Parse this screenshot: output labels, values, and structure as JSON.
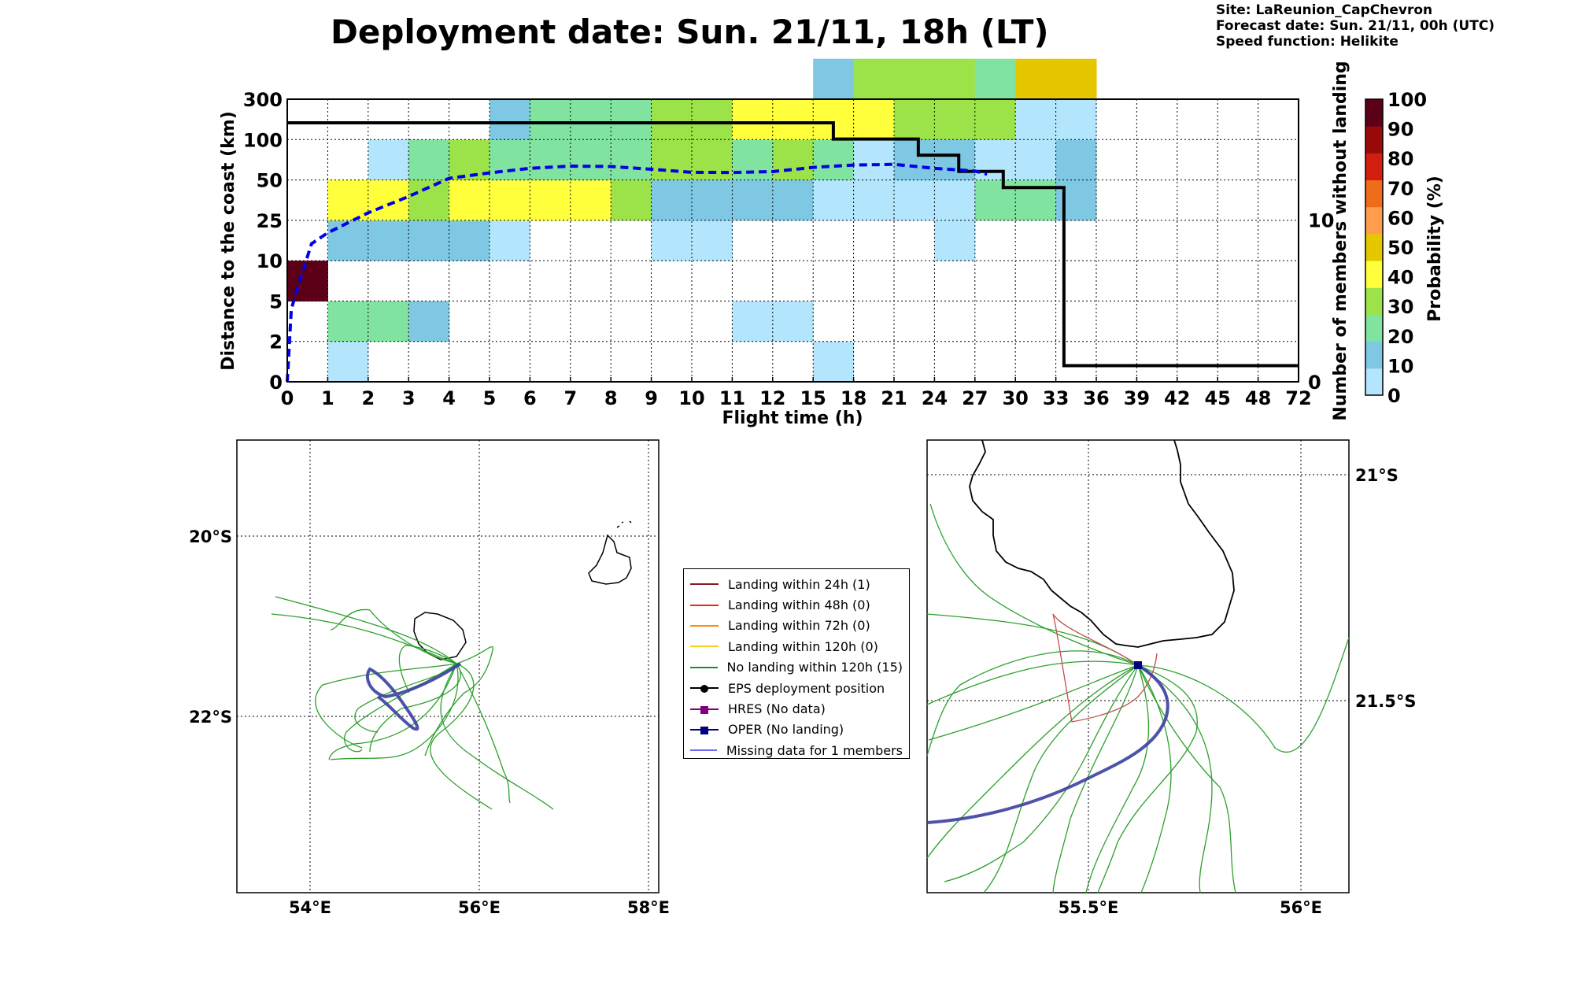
{
  "header": {
    "title": "Deployment date: Sun. 21/11, 18h (LT)",
    "site": "Site: LaReunion_CapChevron",
    "forecast": "Forecast date: Sun. 21/11, 00h (UTC)",
    "speed": "Speed function: Helikite"
  },
  "chart_data": [
    {
      "type": "heatmap",
      "xlabel": "Flight time (h)",
      "ylabel": "Distance to the coast (km)",
      "ylabel_right": "Number of members without landing",
      "x_ticks": [
        "0",
        "1",
        "2",
        "3",
        "4",
        "5",
        "6",
        "7",
        "8",
        "9",
        "10",
        "11",
        "12",
        "15",
        "18",
        "21",
        "24",
        "27",
        "30",
        "33",
        "36",
        "39",
        "42",
        "45",
        "48",
        "72"
      ],
      "y_ticks": [
        "0",
        "2",
        "5",
        "10",
        "25",
        "50",
        "100",
        "300"
      ],
      "y_right_ticks": [
        "0",
        "10"
      ],
      "y_right_range": [
        0,
        16
      ],
      "grid": true,
      "colorbar": {
        "label": "Probability (%)",
        "ticks": [
          "0",
          "10",
          "20",
          "30",
          "40",
          "50",
          "60",
          "70",
          "80",
          "90",
          "100"
        ],
        "colors": [
          "#b3e5fc",
          "#7ec8e3",
          "#80e3a0",
          "#9ce34a",
          "#ffff3c",
          "#e5c700",
          "#ff9d4c",
          "#ef6c1a",
          "#d21e0e",
          "#9a0a0a",
          "#5c0018"
        ]
      },
      "cells": [
        {
          "x": 0,
          "y": 2,
          "p": 100
        },
        {
          "x": 1,
          "y": 0,
          "p": 5
        },
        {
          "x": 1,
          "y": 1,
          "p": 20
        },
        {
          "x": 1,
          "y": 3,
          "p": 15
        },
        {
          "x": 1,
          "y": 4,
          "p": 40
        },
        {
          "x": 2,
          "y": 1,
          "p": 20
        },
        {
          "x": 2,
          "y": 3,
          "p": 15
        },
        {
          "x": 2,
          "y": 4,
          "p": 40
        },
        {
          "x": 2,
          "y": 5,
          "p": 5
        },
        {
          "x": 3,
          "y": 1,
          "p": 15
        },
        {
          "x": 3,
          "y": 3,
          "p": 15
        },
        {
          "x": 3,
          "y": 4,
          "p": 30
        },
        {
          "x": 3,
          "y": 5,
          "p": 20
        },
        {
          "x": 4,
          "y": 3,
          "p": 15
        },
        {
          "x": 4,
          "y": 4,
          "p": 40
        },
        {
          "x": 4,
          "y": 5,
          "p": 30
        },
        {
          "x": 5,
          "y": 3,
          "p": 5
        },
        {
          "x": 5,
          "y": 4,
          "p": 40
        },
        {
          "x": 5,
          "y": 5,
          "p": 20
        },
        {
          "x": 5,
          "y": 6,
          "p": 15
        },
        {
          "x": 6,
          "y": 4,
          "p": 40
        },
        {
          "x": 6,
          "y": 5,
          "p": 20
        },
        {
          "x": 6,
          "y": 6,
          "p": 20
        },
        {
          "x": 7,
          "y": 4,
          "p": 40
        },
        {
          "x": 7,
          "y": 5,
          "p": 20
        },
        {
          "x": 7,
          "y": 6,
          "p": 20
        },
        {
          "x": 8,
          "y": 4,
          "p": 30
        },
        {
          "x": 8,
          "y": 5,
          "p": 20
        },
        {
          "x": 8,
          "y": 6,
          "p": 20
        },
        {
          "x": 9,
          "y": 3,
          "p": 5
        },
        {
          "x": 9,
          "y": 4,
          "p": 15
        },
        {
          "x": 9,
          "y": 5,
          "p": 30
        },
        {
          "x": 9,
          "y": 6,
          "p": 30
        },
        {
          "x": 10,
          "y": 3,
          "p": 5
        },
        {
          "x": 10,
          "y": 4,
          "p": 15
        },
        {
          "x": 10,
          "y": 5,
          "p": 30
        },
        {
          "x": 10,
          "y": 6,
          "p": 30
        },
        {
          "x": 11,
          "y": 1,
          "p": 5
        },
        {
          "x": 11,
          "y": 4,
          "p": 15
        },
        {
          "x": 11,
          "y": 5,
          "p": 20
        },
        {
          "x": 11,
          "y": 6,
          "p": 40
        },
        {
          "x": 12,
          "y": 1,
          "p": 5
        },
        {
          "x": 12,
          "y": 4,
          "p": 15
        },
        {
          "x": 12,
          "y": 5,
          "p": 30
        },
        {
          "x": 12,
          "y": 6,
          "p": 40
        },
        {
          "x": 13,
          "y": 0,
          "p": 5
        },
        {
          "x": 13,
          "y": 4,
          "p": 5
        },
        {
          "x": 13,
          "y": 5,
          "p": 20
        },
        {
          "x": 13,
          "y": 6,
          "p": 40
        },
        {
          "x": 13,
          "y": 7,
          "p": 15
        },
        {
          "x": 14,
          "y": 4,
          "p": 5
        },
        {
          "x": 14,
          "y": 5,
          "p": 5
        },
        {
          "x": 14,
          "y": 6,
          "p": 40
        },
        {
          "x": 14,
          "y": 7,
          "p": 30
        },
        {
          "x": 15,
          "y": 4,
          "p": 5
        },
        {
          "x": 15,
          "y": 5,
          "p": 15
        },
        {
          "x": 15,
          "y": 6,
          "p": 30
        },
        {
          "x": 15,
          "y": 7,
          "p": 30
        },
        {
          "x": 16,
          "y": 3,
          "p": 5
        },
        {
          "x": 16,
          "y": 4,
          "p": 5
        },
        {
          "x": 16,
          "y": 5,
          "p": 15
        },
        {
          "x": 16,
          "y": 6,
          "p": 30
        },
        {
          "x": 16,
          "y": 7,
          "p": 30
        },
        {
          "x": 17,
          "y": 4,
          "p": 20
        },
        {
          "x": 17,
          "y": 5,
          "p": 5
        },
        {
          "x": 17,
          "y": 6,
          "p": 30
        },
        {
          "x": 17,
          "y": 7,
          "p": 20
        },
        {
          "x": 18,
          "y": 4,
          "p": 20
        },
        {
          "x": 18,
          "y": 5,
          "p": 5
        },
        {
          "x": 18,
          "y": 6,
          "p": 5
        },
        {
          "x": 18,
          "y": 7,
          "p": 50
        },
        {
          "x": 19,
          "y": 4,
          "p": 15
        },
        {
          "x": 19,
          "y": 5,
          "p": 15
        },
        {
          "x": 19,
          "y": 6,
          "p": 5
        },
        {
          "x": 19,
          "y": 7,
          "p": 50
        }
      ],
      "members_without_landing": [
        {
          "from": 0,
          "to": 13.5,
          "n": 16
        },
        {
          "from": 13.5,
          "to": 15.6,
          "n": 15
        },
        {
          "from": 15.6,
          "to": 16.6,
          "n": 14
        },
        {
          "from": 16.6,
          "to": 17.7,
          "n": 13
        },
        {
          "from": 17.7,
          "to": 19.2,
          "n": 12
        },
        {
          "from": 19.2,
          "to": 25,
          "n": 1
        }
      ],
      "mean_distance_curve": {
        "x": [
          0,
          0.1,
          0.3,
          0.6,
          1,
          2,
          3,
          4,
          5,
          6,
          7,
          8,
          9,
          10,
          11,
          12,
          13,
          14,
          15,
          16,
          17,
          17.3
        ],
        "y": [
          0,
          4,
          5.5,
          7.6,
          8.2,
          9.3,
          10.2,
          11.2,
          11.5,
          11.75,
          11.87,
          11.85,
          11.7,
          11.53,
          11.52,
          11.57,
          11.8,
          11.93,
          11.97,
          11.75,
          11.6,
          11.43
        ]
      }
    }
  ],
  "maps": {
    "left": {
      "lon_ticks": [
        "54°E",
        "56°E",
        "58°E"
      ],
      "lat_ticks": [
        "20°S",
        "22°S"
      ]
    },
    "right": {
      "lon_ticks": [
        "55.5°E",
        "56°E"
      ],
      "lat_ticks": [
        "21°S",
        "21.5°S"
      ]
    }
  },
  "legend": [
    {
      "label": "Landing within 24h (1)",
      "color": "#8b1a1a",
      "marker": ""
    },
    {
      "label": "Landing within 48h (0)",
      "color": "#e8291c",
      "marker": ""
    },
    {
      "label": "Landing within 72h (0)",
      "color": "#ff8c00",
      "marker": ""
    },
    {
      "label": "Landing within 120h (0)",
      "color": "#f2d31b",
      "marker": ""
    },
    {
      "label": "No landing within 120h (15)",
      "color": "#228b22",
      "marker": ""
    },
    {
      "label": "EPS deployment position",
      "color": "#000000",
      "marker": "circle"
    },
    {
      "label": "HRES (No data)",
      "color": "#800080",
      "marker": "square"
    },
    {
      "label": "OPER (No landing)",
      "color": "#000080",
      "marker": "square"
    },
    {
      "label": "Missing data for 1 members",
      "color": "#6a6aff",
      "marker": ""
    }
  ]
}
